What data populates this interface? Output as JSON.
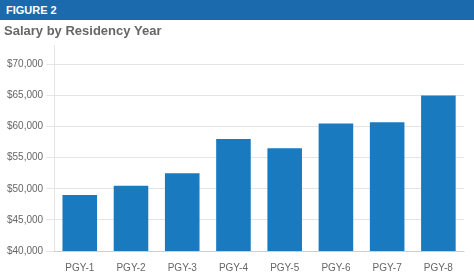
{
  "chart_data": {
    "type": "bar",
    "title": "Salary by Residency Year",
    "annotations": [
      "FIGURE 2"
    ],
    "categories": [
      "PGY-1",
      "PGY-2",
      "PGY-3",
      "PGY-4",
      "PGY-5",
      "PGY-6",
      "PGY-7",
      "PGY-8"
    ],
    "values": [
      49000,
      50500,
      52500,
      58000,
      56500,
      60500,
      60700,
      65000
    ],
    "color": "#1a7abf",
    "ylim": [
      40000,
      73000
    ],
    "yticks": [
      {
        "value": 40000,
        "label": "$40,000"
      },
      {
        "value": 45000,
        "label": "$45,000"
      },
      {
        "value": 50000,
        "label": "$50,000"
      },
      {
        "value": 55000,
        "label": "$55,000"
      },
      {
        "value": 60000,
        "label": "$60,000"
      },
      {
        "value": 65000,
        "label": "$65,000"
      },
      {
        "value": 70000,
        "label": "$70,000"
      }
    ],
    "grid": true,
    "legend": false
  }
}
